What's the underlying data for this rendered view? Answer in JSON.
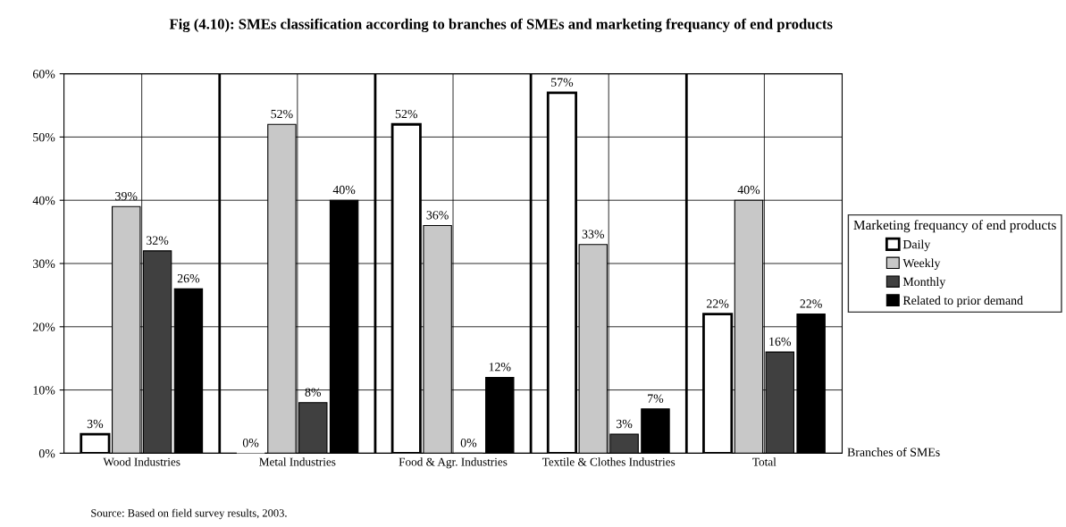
{
  "chart_data": {
    "type": "bar",
    "title": "Fig (4.10): SMEs classification according to branches of SMEs and marketing frequancy of end products",
    "categories": [
      "Wood Industries",
      "Metal Industries",
      "Food & Agr. Industries",
      "Textile & Clothes Industries",
      "Total"
    ],
    "series": [
      {
        "name": "Daily",
        "color": "#ffffff",
        "values": [
          3,
          0,
          52,
          57,
          22
        ],
        "value_labels": [
          "3%",
          "0%",
          "52%",
          "57%",
          "22%"
        ]
      },
      {
        "name": "Weekly",
        "color": "#c8c8c8",
        "values": [
          39,
          52,
          36,
          33,
          40
        ],
        "value_labels": [
          "39%",
          "52%",
          "36%",
          "33%",
          "40%"
        ]
      },
      {
        "name": "Monthly",
        "color": "#404040",
        "values": [
          32,
          8,
          0,
          3,
          16
        ],
        "value_labels": [
          "32%",
          "8%",
          "0%",
          "3%",
          "16%"
        ]
      },
      {
        "name": "Related to prior demand",
        "color": "#000000",
        "values": [
          26,
          40,
          12,
          7,
          22
        ],
        "value_labels": [
          "26%",
          "40%",
          "12%",
          "7%",
          "22%"
        ]
      }
    ],
    "ylim": [
      0,
      60
    ],
    "yticks": [
      {
        "value": 0,
        "label": "0%"
      },
      {
        "value": 10,
        "label": "10%"
      },
      {
        "value": 20,
        "label": "20%"
      },
      {
        "value": 30,
        "label": "30%"
      },
      {
        "value": 40,
        "label": "40%"
      },
      {
        "value": 50,
        "label": "50%"
      },
      {
        "value": 60,
        "label": "60%"
      }
    ],
    "grid": true,
    "legend": "right",
    "legend_title": "Marketing frequancy of end products",
    "xlabel": "Branches of SMEs",
    "annotations": [
      "Source: Based on field survey results, 2003."
    ]
  }
}
